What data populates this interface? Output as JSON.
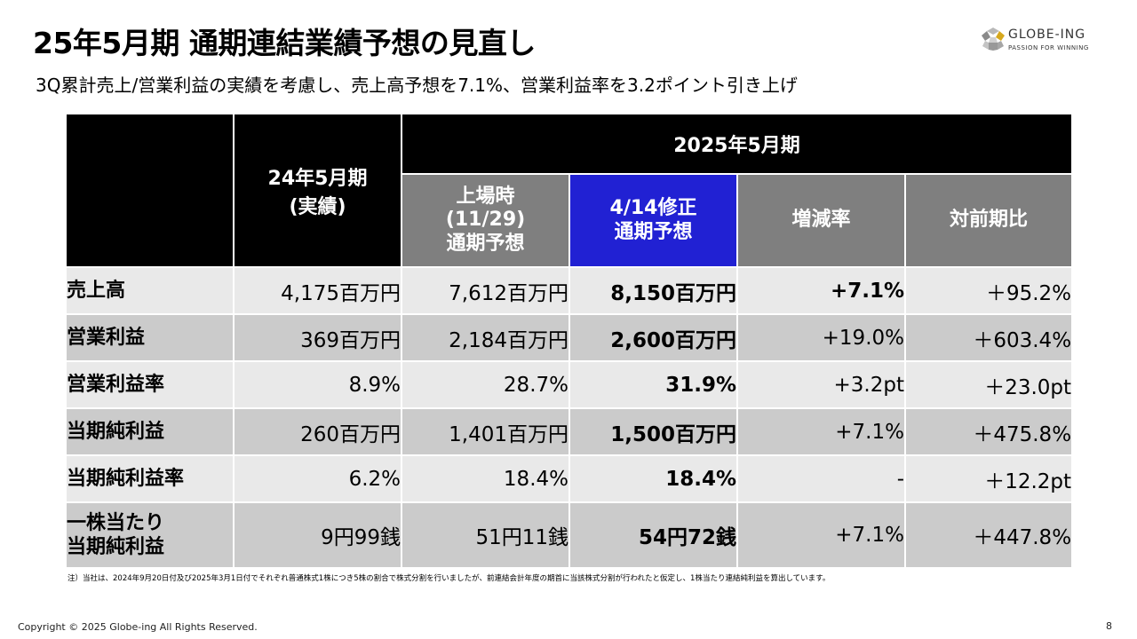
{
  "slide": {
    "title": "25年5月期 通期連結業績予想の見直し",
    "subtitle": "3Q累計売上/営業利益の実績を考慮し、売上高予想を7.1%、営業利益率を3.2ポイント引き上げ"
  },
  "logo": {
    "name": "GLOBE-ING",
    "tagline": "PASSION FOR WINNING",
    "icon": "globe-ing-logo-icon"
  },
  "table": {
    "prev_header": [
      "24年5月期",
      "(実績)"
    ],
    "period_header": "2025年5月期",
    "sub_headers": {
      "ipo": [
        "上場時",
        "(11/29)",
        "通期予想"
      ],
      "revised": [
        "4/14修正",
        "通期予想"
      ],
      "change": "増減率",
      "yoy": "対前期比"
    },
    "rows": [
      {
        "label": [
          "売上高"
        ],
        "prev": "4,175百万円",
        "ipo": "7,612百万円",
        "revised": "8,150百万円",
        "change": "+7.1%",
        "change_bold": true,
        "yoy": "＋95.2%"
      },
      {
        "label": [
          "営業利益"
        ],
        "prev": "369百万円",
        "ipo": "2,184百万円",
        "revised": "2,600百万円",
        "change": "+19.0%",
        "change_bold": false,
        "yoy": "＋603.4%"
      },
      {
        "label": [
          "営業利益率"
        ],
        "prev": "8.9%",
        "ipo": "28.7%",
        "revised": "31.9%",
        "change": "+3.2pt",
        "change_bold": false,
        "yoy": "＋23.0pt"
      },
      {
        "label": [
          "当期純利益"
        ],
        "prev": "260百万円",
        "ipo": "1,401百万円",
        "revised": "1,500百万円",
        "change": "+7.1%",
        "change_bold": false,
        "yoy": "＋475.8%"
      },
      {
        "label": [
          "当期純利益率"
        ],
        "prev": "6.2%",
        "ipo": "18.4%",
        "revised": "18.4%",
        "change": "-",
        "change_bold": false,
        "yoy": "＋12.2pt"
      },
      {
        "label": [
          "一株当たり",
          "当期純利益"
        ],
        "prev": "9円99銭",
        "ipo": "51円11銭",
        "revised": "54円72銭",
        "change": "+7.1%",
        "change_bold": false,
        "yoy": "＋447.8%"
      }
    ]
  },
  "footnote": "注）当社は、2024年9月20日付及び2025年3月1日付でそれぞれ普通株式1株につき5株の割合で株式分割を行いましたが、前連結会計年度の期首に当該株式分割が行われたと仮定し、1株当たり連結純利益を算出しています。",
  "footer": {
    "copyright": "Copyright © 2025 Globe-ing All Rights Reserved.",
    "page_number": "8"
  },
  "colors": {
    "header_black": "#000000",
    "header_gray": "#7f7f7f",
    "revised_blue": "#2121d3",
    "row_light": "#e9e9e9",
    "row_dark": "#cbcbcb"
  }
}
